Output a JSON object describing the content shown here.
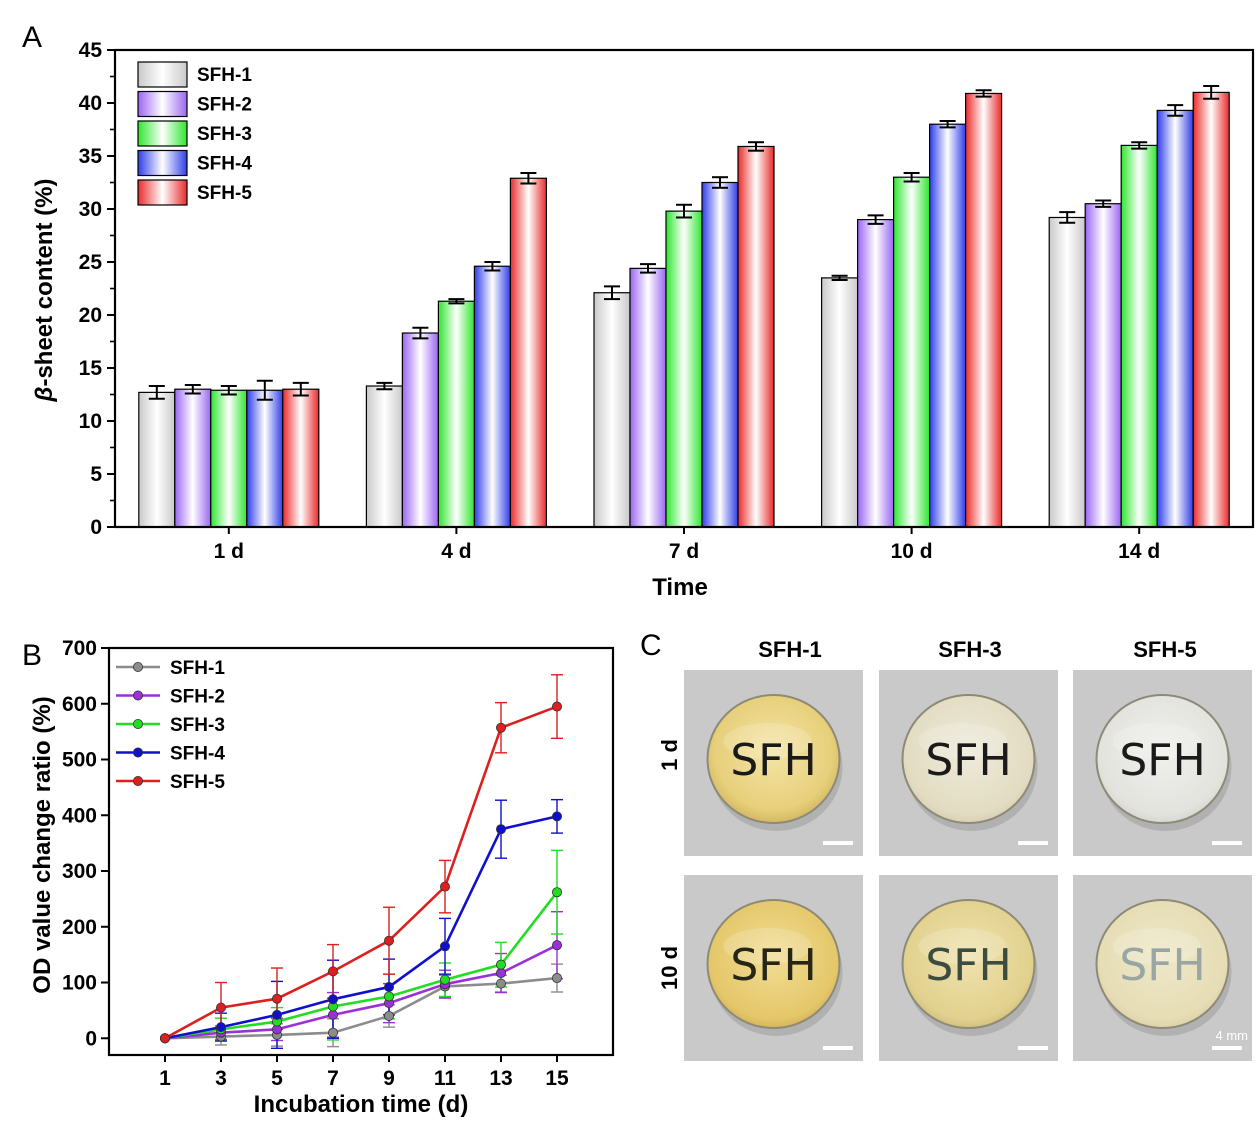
{
  "colors": {
    "SFH-1": "#c9c9c9",
    "SFH-2": "#9a66f2",
    "SFH-3": "#2ee62e",
    "SFH-4": "#2f3ee8",
    "SFH-5": "#ea2b2b",
    "line_SFH-1": "#8c8c8c",
    "line_SFH-2": "#9b30d9",
    "line_SFH-3": "#22dd22",
    "line_SFH-4": "#1010cc",
    "line_SFH-5": "#dd1f1f"
  },
  "panels": {
    "a": "A",
    "b": "B",
    "c": "C"
  },
  "chart_data": [
    {
      "type": "bar",
      "panel": "A",
      "xlabel": "Time",
      "ylabel": "β-sheet content (%)",
      "ylabel_italic": "β",
      "ylabel_rest": "-sheet content (%)",
      "ylim": [
        0,
        45
      ],
      "yticks": [
        0,
        5,
        10,
        15,
        20,
        25,
        30,
        35,
        40,
        45
      ],
      "categories": [
        "1 d",
        "4 d",
        "7 d",
        "10 d",
        "14 d"
      ],
      "legend_position": "top-left",
      "series": [
        {
          "name": "SFH-1",
          "values": [
            12.7,
            13.3,
            22.1,
            23.5,
            29.2
          ],
          "errors": [
            0.6,
            0.3,
            0.6,
            0.2,
            0.5
          ]
        },
        {
          "name": "SFH-2",
          "values": [
            13.0,
            18.3,
            24.4,
            29.0,
            30.5
          ],
          "errors": [
            0.4,
            0.5,
            0.4,
            0.4,
            0.3
          ]
        },
        {
          "name": "SFH-3",
          "values": [
            12.9,
            21.3,
            29.8,
            33.0,
            36.0
          ],
          "errors": [
            0.4,
            0.2,
            0.6,
            0.4,
            0.3
          ]
        },
        {
          "name": "SFH-4",
          "values": [
            12.9,
            24.6,
            32.5,
            38.0,
            39.3
          ],
          "errors": [
            0.9,
            0.4,
            0.5,
            0.3,
            0.5
          ]
        },
        {
          "name": "SFH-5",
          "values": [
            13.0,
            32.9,
            35.9,
            40.9,
            41.0
          ],
          "errors": [
            0.6,
            0.5,
            0.4,
            0.3,
            0.6
          ]
        }
      ]
    },
    {
      "type": "line",
      "panel": "B",
      "xlabel": "Incubation time (d)",
      "ylabel": "OD value change ratio (%)",
      "x": [
        1,
        3,
        5,
        7,
        9,
        11,
        13,
        15
      ],
      "xticks": [
        1,
        3,
        5,
        7,
        9,
        11,
        13,
        15
      ],
      "xlim": [
        -1,
        17
      ],
      "ylim": [
        -30,
        700
      ],
      "yticks": [
        0,
        100,
        200,
        300,
        400,
        500,
        600,
        700
      ],
      "legend_position": "top-left",
      "series": [
        {
          "name": "SFH-1",
          "values": [
            0,
            3,
            6,
            10,
            40,
            93,
            98,
            108
          ],
          "errors": [
            0,
            15,
            20,
            25,
            20,
            20,
            15,
            25
          ]
        },
        {
          "name": "SFH-2",
          "values": [
            0,
            10,
            16,
            42,
            63,
            97,
            117,
            167
          ],
          "errors": [
            0,
            12,
            20,
            40,
            35,
            25,
            35,
            60
          ]
        },
        {
          "name": "SFH-3",
          "values": [
            0,
            16,
            30,
            57,
            75,
            105,
            132,
            262
          ],
          "errors": [
            0,
            20,
            25,
            60,
            40,
            30,
            40,
            75
          ]
        },
        {
          "name": "SFH-4",
          "values": [
            0,
            20,
            42,
            70,
            92,
            165,
            375,
            398
          ],
          "errors": [
            0,
            25,
            60,
            70,
            50,
            50,
            52,
            30
          ]
        },
        {
          "name": "SFH-5",
          "values": [
            0,
            55,
            71,
            120,
            175,
            272,
            557,
            595
          ],
          "errors": [
            0,
            45,
            55,
            48,
            60,
            47,
            45,
            57
          ]
        }
      ]
    }
  ],
  "photos": {
    "columns": [
      "SFH-1",
      "SFH-3",
      "SFH-5"
    ],
    "rows": [
      "1 d",
      "10 d"
    ],
    "sample_text": "SFH",
    "scale_label": "4 mm"
  }
}
